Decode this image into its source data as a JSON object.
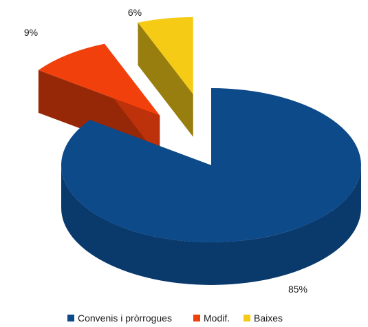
{
  "chart_data": {
    "type": "pie",
    "style": "3d-exploded",
    "legend_position": "bottom",
    "slices": [
      {
        "name": "Convenis i pròrrogues",
        "value": 85,
        "label": "85%",
        "color": "#0d4a8a"
      },
      {
        "name": "Modif.",
        "value": 9,
        "label": "9%",
        "color": "#f2400d"
      },
      {
        "name": "Baixes",
        "value": 6,
        "label": "6%",
        "color": "#f5cb16"
      }
    ]
  }
}
